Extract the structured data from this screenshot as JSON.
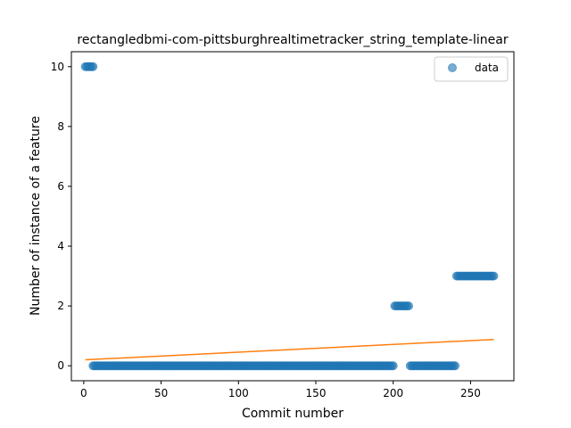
{
  "chart_data": {
    "type": "scatter",
    "title": "rectangledbmi-com-pittsburghrealtimetracker_string_template-linear",
    "xlabel": "Commit number",
    "ylabel": "Number of instance of a feature",
    "xlim": [
      -8,
      278
    ],
    "ylim": [
      -0.5,
      10.5
    ],
    "xticks": [
      0,
      50,
      100,
      150,
      200,
      250
    ],
    "yticks": [
      0,
      2,
      4,
      6,
      8,
      10
    ],
    "grid": false,
    "legend": {
      "position": "top-right",
      "entries": [
        "data"
      ]
    },
    "series": [
      {
        "name": "data",
        "kind": "scatter",
        "color": "#1f77b4",
        "segments": [
          {
            "x_start": 1,
            "x_end": 6,
            "y": 10
          },
          {
            "x_start": 6,
            "x_end": 200,
            "y": 0
          },
          {
            "x_start": 201,
            "x_end": 210,
            "y": 2
          },
          {
            "x_start": 211,
            "x_end": 240,
            "y": 0
          },
          {
            "x_start": 241,
            "x_end": 265,
            "y": 3
          }
        ]
      },
      {
        "kind": "line",
        "color": "#ff7f0e",
        "x": [
          1,
          265
        ],
        "y": [
          0.2,
          0.88
        ]
      }
    ]
  }
}
